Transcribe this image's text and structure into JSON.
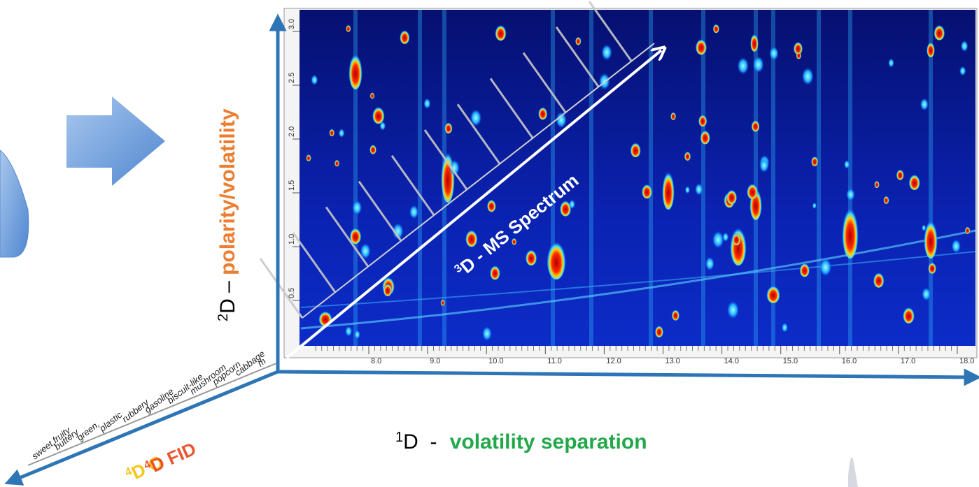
{
  "y_axis": {
    "sup": "2",
    "prefix": "D – ",
    "emphasis": "polarity/volatility"
  },
  "x_axis": {
    "sup": "1",
    "prefix": "D  - ",
    "emphasis": "volatility separation"
  },
  "diagonal": {
    "sup": "3",
    "text": "D - MS Spectrum"
  },
  "olfactometry": {
    "sup": "4",
    "text": "D O"
  },
  "fid": {
    "sup": "4",
    "text": "D FID"
  },
  "odor_labels": [
    "sweet,fruity",
    "buttery",
    "green,",
    "plastic",
    "rubbery",
    "gasoline",
    "biscuit-like",
    "mushroom",
    "popcorn",
    "cabbage",
    "m"
  ],
  "plot": {
    "x_ticks": [
      "8.0",
      "9.0",
      "10.0",
      "11.0",
      "12.0",
      "13.0",
      "14.0",
      "15.0",
      "16.0",
      "17.0",
      "18.0"
    ],
    "y_ticks": [
      "3.0",
      "2.5",
      "2.0",
      "1.5",
      "1.0",
      "0.5"
    ]
  }
}
